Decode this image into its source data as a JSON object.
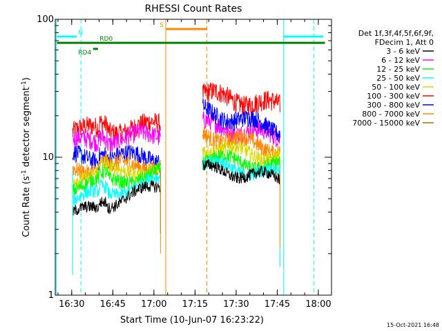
{
  "footer": {
    "timestamp": "15-Oct-2021 16:48"
  },
  "chart_data": {
    "type": "line",
    "title": "RHESSI Count Rates",
    "xlabel": "Start Time (10-Jun-07 16:23:22)",
    "ylabel_main": "Count Rate (s",
    "ylabel_sup": "-1",
    "ylabel_rest": " detector segment",
    "ylabel_sup2": "-1",
    "ylabel_end": ")",
    "xlim_min": [
      16.4,
      18.08
    ],
    "yscale": "log",
    "ylim": [
      1,
      100
    ],
    "xticks": [
      {
        "value": 16.5,
        "label": "16:30"
      },
      {
        "value": 16.75,
        "label": "16:45"
      },
      {
        "value": 17.0,
        "label": "17:00"
      },
      {
        "value": 17.25,
        "label": "17:15"
      },
      {
        "value": 17.5,
        "label": "17:30"
      },
      {
        "value": 17.75,
        "label": "17:45"
      },
      {
        "value": 18.0,
        "label": "18:00"
      }
    ],
    "yticks": [
      {
        "value": 1,
        "label": "1"
      },
      {
        "value": 10,
        "label": "10"
      },
      {
        "value": 100,
        "label": "100"
      }
    ],
    "legend": {
      "placement": "right",
      "header": [
        "Det 1f,3f,4f,5f,6f,9f,",
        "FDecim 1, Att 0"
      ],
      "entries": [
        {
          "label": "3 - 6 keV",
          "color": "#000000"
        },
        {
          "label": "6 - 12 keV",
          "color": "#ff00ff"
        },
        {
          "label": "12 - 25 keV",
          "color": "#00ff00"
        },
        {
          "label": "25 - 50 keV",
          "color": "#00ffff"
        },
        {
          "label": "50 - 100 keV",
          "color": "#d8d800"
        },
        {
          "label": "100 - 300 keV",
          "color": "#ff0000"
        },
        {
          "label": "300 - 800 keV",
          "color": "#0000ff"
        },
        {
          "label": "800 - 7000 keV",
          "color": "#ff8800"
        },
        {
          "label": "7000 - 15000 keV",
          "color": "#a07000"
        }
      ]
    },
    "segments": [
      {
        "start": 16.506,
        "end": 17.04
      },
      {
        "start": 17.297,
        "end": 17.767
      }
    ],
    "series": [
      {
        "name": "100 - 300 keV",
        "color": "#ff0000",
        "v1s": 15.5,
        "v1e": 17.0,
        "v2s": 29.0,
        "v2e": 23.5
      },
      {
        "name": "6 - 12 keV",
        "color": "#ff00ff",
        "v1s": 12.8,
        "v1e": 14.5,
        "v2s": 17.5,
        "v2e": 14.0
      },
      {
        "name": "300 - 800 keV",
        "color": "#0000ff",
        "v1s": 10.2,
        "v1e": 10.0,
        "v2s": 22.0,
        "v2e": 16.0
      },
      {
        "name": "800 - 7000 keV",
        "color": "#ff8800",
        "v1s": 8.3,
        "v1e": 9.0,
        "v2s": 15.0,
        "v2e": 11.5
      },
      {
        "name": "50 - 100 keV",
        "color": "#d8d800",
        "v1s": 7.4,
        "v1e": 8.3,
        "v2s": 12.0,
        "v2e": 10.0
      },
      {
        "name": "12 - 25 keV",
        "color": "#00ff00",
        "v1s": 6.2,
        "v1e": 7.6,
        "v2s": 10.0,
        "v2e": 8.5
      },
      {
        "name": "25 - 50 keV",
        "color": "#00ffff",
        "v1s": 4.9,
        "v1e": 6.8,
        "v2s": 9.0,
        "v2e": 7.5
      },
      {
        "name": "3 - 6 keV",
        "color": "#000000",
        "v1s": 3.8,
        "v1e": 6.2,
        "v2s": 8.3,
        "v2e": 7.0
      }
    ],
    "vlines": [
      {
        "x": 16.406,
        "color": "#00ffff",
        "dash": false
      },
      {
        "x": 16.556,
        "color": "#00ffff",
        "dash": true
      },
      {
        "x": 17.072,
        "color": "#ff8800",
        "dash": false
      },
      {
        "x": 17.322,
        "color": "#ff8800",
        "dash": true
      },
      {
        "x": 17.789,
        "color": "#00ffff",
        "dash": false
      },
      {
        "x": 17.972,
        "color": "#00ffff",
        "dash": true
      }
    ],
    "flags": [
      {
        "label": "N",
        "color": "#00ffff",
        "y": 75,
        "ranges": [
          [
            16.41,
            16.53
          ],
          [
            17.79,
            18.03
          ]
        ],
        "labelX": 16.54
      },
      {
        "label": "S",
        "color": "#ff8800",
        "y": 85,
        "ranges": [
          [
            17.072,
            17.322
          ]
        ],
        "labelX": 17.035
      },
      {
        "label": "RD0",
        "color": "#008000",
        "y": 67.5,
        "ranges": [
          [
            16.41,
            18.04
          ]
        ],
        "labelX": 16.67
      },
      {
        "label": "RD4",
        "color": "#008000",
        "y": 61,
        "ranges": [
          [
            16.63,
            16.66
          ]
        ],
        "labelX": 16.54
      }
    ]
  }
}
